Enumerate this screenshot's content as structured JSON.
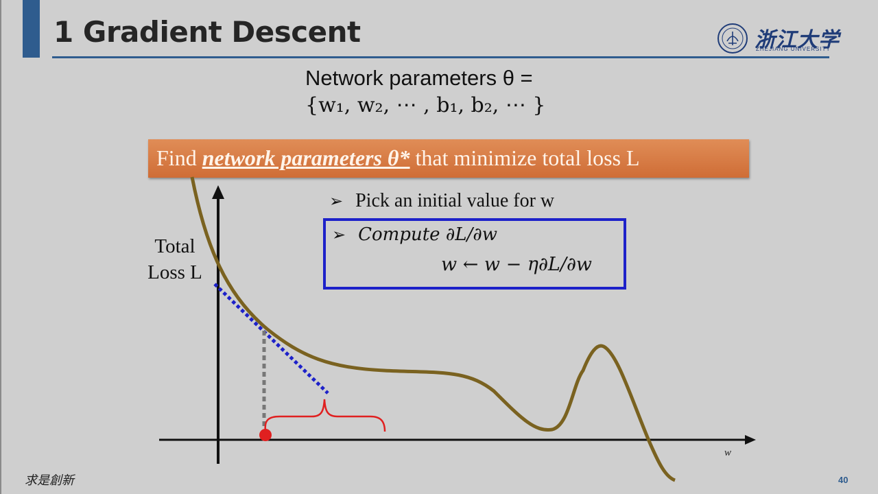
{
  "slide": {
    "title": "1 Gradient Descent",
    "page_number": "40",
    "footer_motto": "求是創新",
    "accent_color": "#2f5c8e"
  },
  "logo": {
    "name": "浙江大学",
    "subtitle": "ZHEJIANG UNIVERSITY"
  },
  "parameters": {
    "line1": "Network parameters θ =",
    "line2": "{w₁, w₂, ⋯ , b₁, b₂, ⋯ }"
  },
  "banner": {
    "prefix": "Find ",
    "emphasis": "network parameters θ*",
    "suffix": " that minimize total loss L",
    "color": "#d9773f"
  },
  "bullets": {
    "pick": "Pick an initial value for w",
    "compute": "Compute ∂L/∂w",
    "update": "w ← w − η∂L/∂w",
    "marker": "➢"
  },
  "plot": {
    "y_label_line1": "Total",
    "y_label_line2": "Loss L",
    "x_label": "w",
    "curve_color": "#7a6220",
    "tangent_color": "#1d21c9",
    "point_color": "#e02020"
  }
}
